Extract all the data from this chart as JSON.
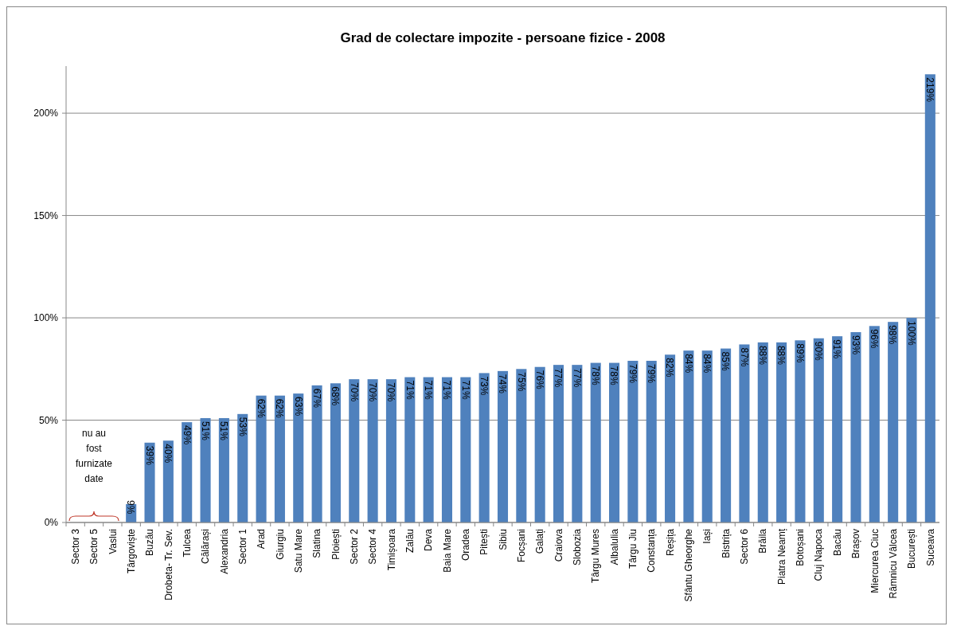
{
  "chart_data": {
    "type": "bar",
    "title": "Grad de colectare impozite - persoane fizice - 2008",
    "categories": [
      "Sector 3",
      "Sector 5",
      "Vaslui",
      "Târgoviște",
      "Buzău",
      "Drobeta- Tr. Sev.",
      "Tulcea",
      "Călărași",
      "Alexandria",
      "Sector 1",
      "Arad",
      "Giurgiu",
      "Satu Mare",
      "Slatina",
      "Ploiești",
      "Sector 2",
      "Sector 4",
      "Timișoara",
      "Zalău",
      "Deva",
      "Baia Mare",
      "Oradea",
      "Pitești",
      "Sibiu",
      "Focșani",
      "Galați",
      "Craiova",
      "Slobozia",
      "Târgu Mures",
      "Albalulia",
      "Târgu Jiu",
      "Constanța",
      "Reșița",
      "Sfântu Gheorghe",
      "Iași",
      "Bistrița",
      "Sector 6",
      "Brăila",
      "Piatra Neamț",
      "Botoșani",
      "Cluj Napoca",
      "Bacău",
      "Brașov",
      "Miercurea Ciuc",
      "Râmnicu Vâlcea",
      "București",
      "Suceava"
    ],
    "values": [
      null,
      null,
      null,
      9,
      39,
      40,
      49,
      51,
      51,
      53,
      62,
      62,
      63,
      67,
      68,
      70,
      70,
      70,
      71,
      71,
      71,
      71,
      73,
      74,
      75,
      76,
      77,
      77,
      78,
      78,
      79,
      79,
      82,
      84,
      84,
      85,
      87,
      88,
      88,
      89,
      90,
      91,
      93,
      96,
      98,
      100,
      219
    ],
    "value_labels": [
      null,
      null,
      null,
      "9%",
      "39%",
      "40%",
      "49%",
      "51%",
      "51%",
      "53%",
      "62%",
      "62%",
      "63%",
      "67%",
      "68%",
      "70%",
      "70%",
      "70%",
      "71%",
      "71%",
      "71%",
      "71%",
      "73%",
      "74%",
      "75%",
      "76%",
      "77%",
      "77%",
      "78%",
      "78%",
      "79%",
      "79%",
      "82%",
      "84%",
      "84%",
      "85%",
      "87%",
      "88%",
      "88%",
      "89%",
      "90%",
      "91%",
      "93%",
      "96%",
      "98%",
      "100%",
      "219%"
    ],
    "color": "#4f81bd",
    "ylim": [
      0,
      223
    ],
    "yticks": [
      {
        "value": 0,
        "label": "0%"
      },
      {
        "value": 50,
        "label": "50%"
      },
      {
        "value": 100,
        "label": "100%"
      },
      {
        "value": 150,
        "label": "150%"
      },
      {
        "value": 200,
        "label": "200%"
      }
    ],
    "grid": "y",
    "annotations": [
      "nu au fost furnizate date"
    ]
  }
}
